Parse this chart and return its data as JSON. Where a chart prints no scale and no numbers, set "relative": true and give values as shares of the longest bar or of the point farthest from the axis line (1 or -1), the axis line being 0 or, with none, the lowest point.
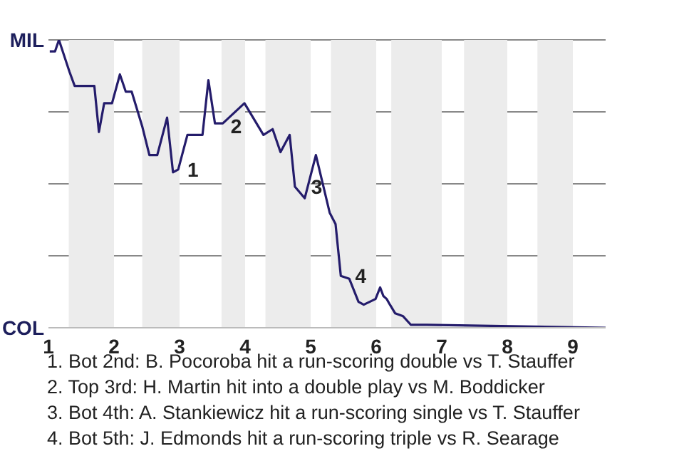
{
  "chart_data": {
    "type": "line",
    "relative": true,
    "x": [
      1.02,
      1.1,
      1.16,
      1.32,
      1.4,
      1.7,
      1.77,
      1.85,
      1.97,
      2.09,
      2.18,
      2.27,
      2.43,
      2.54,
      2.66,
      2.81,
      2.9,
      2.98,
      3.12,
      3.35,
      3.44,
      3.54,
      3.66,
      3.99,
      4.28,
      4.42,
      4.54,
      4.68,
      4.76,
      4.91,
      5.08,
      5.29,
      5.38,
      5.46,
      5.59,
      5.73,
      5.81,
      5.99,
      6.06,
      6.11,
      6.16,
      6.21,
      6.29,
      6.41,
      6.53,
      6.77,
      9.5
    ],
    "series": [
      {
        "color": "#241c6b",
        "values": [
          0.96,
          0.96,
          1,
          0.89,
          0.84,
          0.84,
          0.68,
          0.78,
          0.78,
          0.88,
          0.82,
          0.82,
          0.7,
          0.6,
          0.6,
          0.73,
          0.54,
          0.55,
          0.67,
          0.67,
          0.86,
          0.71,
          0.71,
          0.78,
          0.67,
          0.69,
          0.61,
          0.67,
          0.49,
          0.45,
          0.6,
          0.4,
          0.36,
          0.18,
          0.17,
          0.09,
          0.08,
          0.1,
          0.14,
          0.11,
          0.1,
          0.08,
          0.05,
          0.04,
          0.01,
          0.01,
          0
        ]
      }
    ],
    "xlim": [
      1,
      9.5
    ],
    "xticks": [
      1,
      2,
      3,
      4,
      5,
      6,
      7,
      8,
      9
    ],
    "grid": "y",
    "bands": [
      {
        "axis": "x",
        "from": 1.31,
        "to": 2,
        "color": "#ececec"
      },
      {
        "axis": "x",
        "from": 2.43,
        "to": 3,
        "color": "#ececec"
      },
      {
        "axis": "x",
        "from": 3.64,
        "to": 4,
        "color": "#ececec"
      },
      {
        "axis": "x",
        "from": 4.31,
        "to": 5,
        "color": "#ececec"
      },
      {
        "axis": "x",
        "from": 5.31,
        "to": 6,
        "color": "#ececec"
      },
      {
        "axis": "x",
        "from": 6.23,
        "to": 7,
        "color": "#ececec"
      },
      {
        "axis": "x",
        "from": 7.34,
        "to": 8,
        "color": "#ececec"
      },
      {
        "axis": "x",
        "from": 8.46,
        "to": 9,
        "color": "#ececec"
      }
    ],
    "annotations": [
      "MIL",
      "COL",
      {
        "text": "1",
        "x": 3.01,
        "y": 0.55
      },
      {
        "text": "2",
        "x": 3.67,
        "y": 0.7
      },
      {
        "text": "3",
        "x": 4.9,
        "y": 0.49
      },
      {
        "text": "4",
        "x": 5.57,
        "y": 0.18
      },
      "1. Bot 2nd: B. Pocoroba hit a run-scoring double vs T. Stauffer",
      "2. Top 3rd: H. Martin hit into a double play vs M. Boddicker",
      "3. Bot 4th: A. Stankiewicz hit a run-scoring single vs T. Stauffer",
      "4. Bot 5th: J. Edmonds hit a run-scoring triple vs R. Searage"
    ]
  }
}
